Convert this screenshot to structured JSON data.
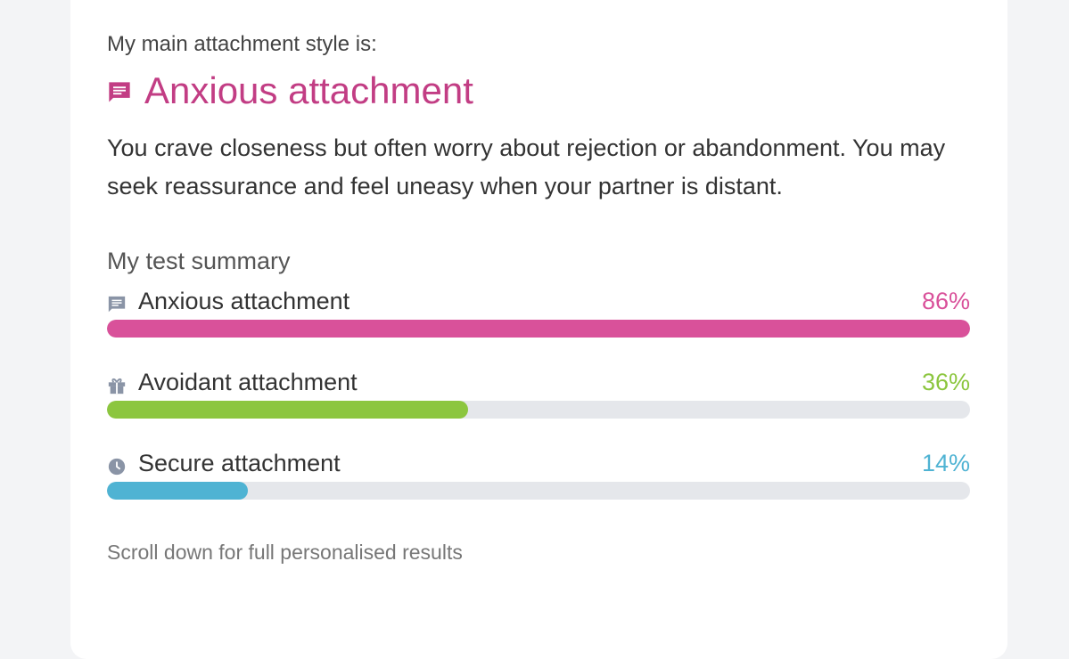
{
  "header": {
    "intro": "My main attachment style is:",
    "title": "Anxious attachment",
    "description": "You crave closeness but often worry about rejection or abandonment. You may seek reassurance and feel uneasy when your partner is distant."
  },
  "summary": {
    "title": "My test summary",
    "results": [
      {
        "name": "Anxious attachment",
        "value": 86,
        "label": "86%",
        "color": "#d9519a"
      },
      {
        "name": "Avoidant attachment",
        "value": 36,
        "label": "36%",
        "color": "#8cc63f"
      },
      {
        "name": "Secure attachment",
        "value": 14,
        "label": "14%",
        "color": "#4fb3d3"
      }
    ],
    "note": "Scroll down for full personalised results"
  }
}
